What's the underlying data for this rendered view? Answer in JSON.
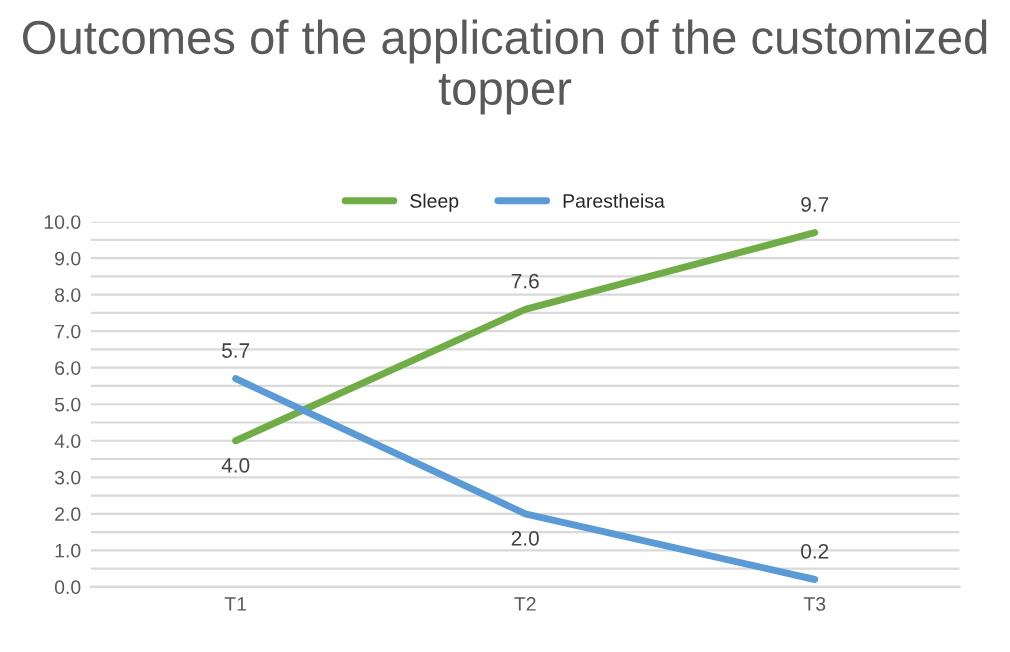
{
  "chart_data": {
    "type": "line",
    "title": "Outcomes of the application of the customized topper",
    "categories": [
      "T1",
      "T2",
      "T3"
    ],
    "series": [
      {
        "name": "Sleep",
        "color": "#70ad47",
        "values": [
          4.0,
          7.6,
          9.7
        ],
        "value_labels": [
          "4.0",
          "7.6",
          "9.7"
        ]
      },
      {
        "name": "Parestheisa",
        "color": "#5b9bd5",
        "values": [
          5.7,
          2.0,
          0.2
        ],
        "value_labels": [
          "5.7",
          "2.0",
          "0.2"
        ]
      }
    ],
    "ylim": [
      0,
      10
    ],
    "yticks": [
      {
        "value": 0,
        "label": "0.0"
      },
      {
        "value": 0.5,
        "label": null
      },
      {
        "value": 1,
        "label": "1.0"
      },
      {
        "value": 1.5,
        "label": null
      },
      {
        "value": 2,
        "label": "2.0"
      },
      {
        "value": 2.5,
        "label": null
      },
      {
        "value": 3,
        "label": "3.0"
      },
      {
        "value": 3.5,
        "label": null
      },
      {
        "value": 4,
        "label": "4.0"
      },
      {
        "value": 4.5,
        "label": null
      },
      {
        "value": 5,
        "label": "5.0"
      },
      {
        "value": 5.5,
        "label": null
      },
      {
        "value": 6,
        "label": "6.0"
      },
      {
        "value": 6.5,
        "label": null
      },
      {
        "value": 7,
        "label": "7.0"
      },
      {
        "value": 7.5,
        "label": null
      },
      {
        "value": 8,
        "label": "8.0"
      },
      {
        "value": 8.5,
        "label": null
      },
      {
        "value": 9,
        "label": "9.0"
      },
      {
        "value": 9.5,
        "label": null
      },
      {
        "value": 10,
        "label": "10.0"
      }
    ],
    "grid": "y",
    "legend": "top",
    "marker": "none",
    "line_style": "solid"
  }
}
